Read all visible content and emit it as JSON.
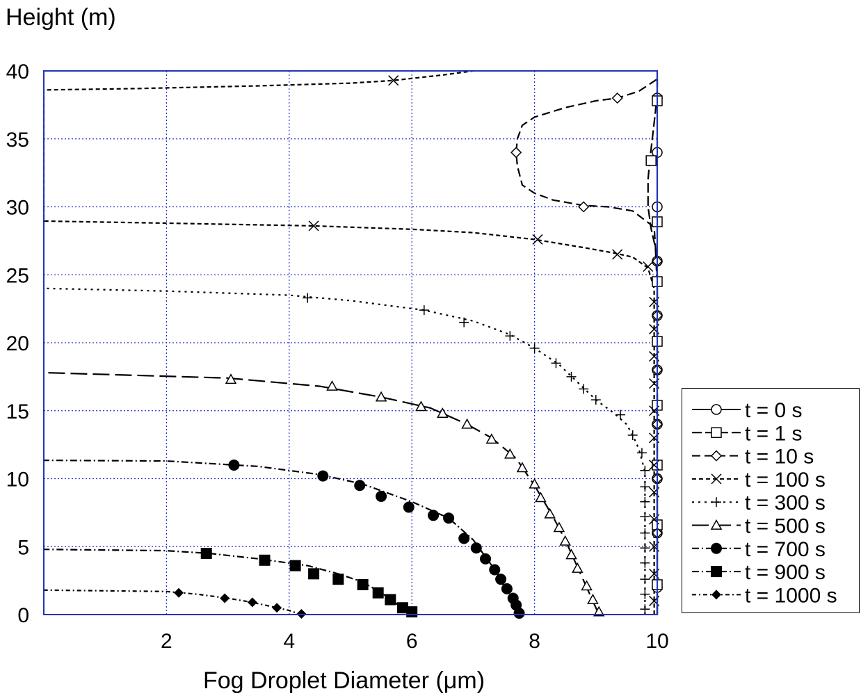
{
  "chart_data": {
    "type": "line",
    "title": "",
    "xlabel": "Fog Droplet Diameter (μm)",
    "ylabel": "Height (m)",
    "xlim": [
      0,
      10
    ],
    "ylim": [
      0,
      40
    ],
    "xticks": [
      "2",
      "4",
      "6",
      "8",
      "10"
    ],
    "yticks": [
      "0",
      "5",
      "10",
      "15",
      "20",
      "25",
      "30",
      "35",
      "40"
    ],
    "grid": true,
    "legend_position": "right",
    "series": [
      {
        "name": "t = 0 s",
        "marker": "circle",
        "dash": "8 0",
        "points": [
          [
            10,
            0
          ],
          [
            10,
            2
          ],
          [
            10,
            4
          ],
          [
            10,
            6
          ],
          [
            10,
            8
          ],
          [
            10,
            10
          ],
          [
            10,
            12
          ],
          [
            10,
            14
          ],
          [
            10,
            16
          ],
          [
            10,
            18
          ],
          [
            10,
            20
          ],
          [
            10,
            22
          ],
          [
            10,
            24
          ],
          [
            10,
            26
          ],
          [
            10,
            28
          ],
          [
            10,
            30
          ],
          [
            10,
            32
          ],
          [
            10,
            34
          ],
          [
            10,
            36
          ],
          [
            10,
            38
          ],
          [
            10,
            40
          ]
        ],
        "marked": [
          [
            10,
            2
          ],
          [
            10,
            6
          ],
          [
            10,
            10
          ],
          [
            10,
            14
          ],
          [
            10,
            18
          ],
          [
            10,
            22
          ],
          [
            10,
            26
          ],
          [
            10,
            30
          ],
          [
            10,
            34
          ],
          [
            10,
            38
          ]
        ]
      },
      {
        "name": "t = 1 s",
        "marker": "square",
        "dash": "14 5",
        "points": [
          [
            10,
            0
          ],
          [
            10,
            2.2
          ],
          [
            10,
            6.6
          ],
          [
            10,
            11
          ],
          [
            10,
            15.4
          ],
          [
            10,
            19.8
          ],
          [
            10,
            24.2
          ],
          [
            9.97,
            27
          ],
          [
            9.9,
            28.4
          ],
          [
            9.85,
            30
          ],
          [
            9.85,
            32
          ],
          [
            9.88,
            33.5
          ],
          [
            9.92,
            35
          ],
          [
            9.97,
            37
          ],
          [
            10,
            38.5
          ],
          [
            10,
            39.5
          ]
        ],
        "marked": [
          [
            10,
            2.2
          ],
          [
            10,
            6.6
          ],
          [
            10,
            11
          ],
          [
            10,
            15.4
          ],
          [
            10,
            20.1
          ],
          [
            10,
            24.5
          ],
          [
            10,
            28.9
          ],
          [
            9.9,
            33.4
          ],
          [
            10,
            37.8
          ]
        ]
      },
      {
        "name": "t = 10 s",
        "marker": "diamond",
        "dash": "12 6",
        "points": [
          [
            10,
            0
          ],
          [
            10,
            10
          ],
          [
            10,
            20
          ],
          [
            10,
            25
          ],
          [
            9.95,
            28.5
          ],
          [
            9.6,
            29.7
          ],
          [
            9.2,
            30
          ],
          [
            8.8,
            30.1
          ],
          [
            8.3,
            30.5
          ],
          [
            8.0,
            31
          ],
          [
            7.8,
            31.6
          ],
          [
            7.72,
            33
          ],
          [
            7.7,
            34
          ],
          [
            7.72,
            35
          ],
          [
            7.8,
            36
          ],
          [
            8.0,
            36.6
          ],
          [
            8.5,
            37.3
          ],
          [
            9.0,
            37.8
          ],
          [
            9.35,
            38
          ],
          [
            9.7,
            38.5
          ],
          [
            9.9,
            39.1
          ],
          [
            10,
            39.4
          ]
        ],
        "marked": [
          [
            10,
            6
          ],
          [
            10,
            10
          ],
          [
            10,
            14
          ],
          [
            10,
            18
          ],
          [
            10,
            22
          ],
          [
            10,
            26
          ],
          [
            8.8,
            30
          ],
          [
            7.7,
            34
          ],
          [
            9.35,
            38
          ]
        ]
      },
      {
        "name": "t = 100 s",
        "marker": "x",
        "dash": "6 4",
        "points": [
          [
            9.95,
            0
          ],
          [
            9.95,
            8
          ],
          [
            9.95,
            16
          ],
          [
            9.95,
            24
          ],
          [
            9.85,
            25.5
          ],
          [
            9.6,
            26.3
          ],
          [
            9.3,
            26.6
          ],
          [
            8.8,
            27
          ],
          [
            8.0,
            27.6
          ],
          [
            7.0,
            28.1
          ],
          [
            6.0,
            28.35
          ],
          [
            4.4,
            28.6
          ],
          [
            2.0,
            28.8
          ],
          [
            0,
            28.95
          ],
          [
            0,
            38.6
          ],
          [
            1.5,
            38.7
          ],
          [
            3.5,
            38.9
          ],
          [
            5.0,
            39.1
          ],
          [
            5.7,
            39.3
          ],
          [
            6.5,
            39.7
          ],
          [
            7.0,
            40
          ]
        ],
        "marked": [
          [
            9.95,
            1
          ],
          [
            9.95,
            3
          ],
          [
            9.95,
            5
          ],
          [
            9.95,
            7
          ],
          [
            9.95,
            9
          ],
          [
            9.95,
            11
          ],
          [
            9.95,
            13
          ],
          [
            9.95,
            15
          ],
          [
            9.95,
            17
          ],
          [
            9.95,
            19
          ],
          [
            9.95,
            21
          ],
          [
            9.95,
            23
          ],
          [
            9.85,
            25.6
          ],
          [
            9.35,
            26.5
          ],
          [
            8.05,
            27.6
          ],
          [
            4.4,
            28.6
          ],
          [
            5.7,
            39.3
          ]
        ]
      },
      {
        "name": "t = 300 s",
        "marker": "plus",
        "dash": "3 6",
        "points": [
          [
            9.8,
            0
          ],
          [
            9.8,
            10.5
          ],
          [
            9.7,
            12.2
          ],
          [
            9.6,
            13.2
          ],
          [
            9.5,
            14
          ],
          [
            9.3,
            14.8
          ],
          [
            9.0,
            15.8
          ],
          [
            8.7,
            17.1
          ],
          [
            8.4,
            18.4
          ],
          [
            8.0,
            19.6
          ],
          [
            7.6,
            20.6
          ],
          [
            7.0,
            21.6
          ],
          [
            6.2,
            22.4
          ],
          [
            5.0,
            23.1
          ],
          [
            4.0,
            23.5
          ],
          [
            2.0,
            23.8
          ],
          [
            0,
            24
          ]
        ],
        "marked": [
          [
            9.8,
            0.4
          ],
          [
            9.8,
            1.5
          ],
          [
            9.8,
            2.6
          ],
          [
            9.8,
            3.8
          ],
          [
            9.8,
            4.9
          ],
          [
            9.8,
            6
          ],
          [
            9.8,
            7.2
          ],
          [
            9.8,
            8.3
          ],
          [
            9.8,
            9.4
          ],
          [
            9.8,
            10.6
          ],
          [
            9.75,
            11.9
          ],
          [
            9.6,
            13.2
          ],
          [
            9.4,
            14.7
          ],
          [
            9.0,
            15.8
          ],
          [
            8.8,
            16.6
          ],
          [
            8.6,
            17.5
          ],
          [
            8.35,
            18.5
          ],
          [
            8.0,
            19.6
          ],
          [
            7.6,
            20.5
          ],
          [
            6.85,
            21.5
          ],
          [
            6.2,
            22.4
          ],
          [
            4.3,
            23.3
          ]
        ]
      },
      {
        "name": "t = 500 s",
        "marker": "triangle",
        "dash": "24 8",
        "points": [
          [
            9.05,
            0
          ],
          [
            8.9,
            1.5
          ],
          [
            8.7,
            3.5
          ],
          [
            8.5,
            5.5
          ],
          [
            8.3,
            7.2
          ],
          [
            8.0,
            9.5
          ],
          [
            7.7,
            11.5
          ],
          [
            7.3,
            13
          ],
          [
            6.9,
            14
          ],
          [
            6.3,
            15.2
          ],
          [
            5.5,
            16
          ],
          [
            4.5,
            16.8
          ],
          [
            3.0,
            17.4
          ],
          [
            1.5,
            17.6
          ],
          [
            0,
            17.8
          ]
        ],
        "marked": [
          [
            9.05,
            0.2
          ],
          [
            8.95,
            1.1
          ],
          [
            8.85,
            2.1
          ],
          [
            8.7,
            3.4
          ],
          [
            8.6,
            4.4
          ],
          [
            8.5,
            5.4
          ],
          [
            8.4,
            6.4
          ],
          [
            8.25,
            7.4
          ],
          [
            8.1,
            8.6
          ],
          [
            8.0,
            9.6
          ],
          [
            7.8,
            10.8
          ],
          [
            7.6,
            11.8
          ],
          [
            7.3,
            12.9
          ],
          [
            6.9,
            14
          ],
          [
            6.5,
            14.8
          ],
          [
            6.15,
            15.3
          ],
          [
            5.5,
            16
          ],
          [
            4.7,
            16.8
          ],
          [
            3.05,
            17.3
          ]
        ]
      },
      {
        "name": "t = 700 s",
        "marker": "filled-circle",
        "dash": "10 4 2 4",
        "points": [
          [
            7.75,
            0
          ],
          [
            7.6,
            1.2
          ],
          [
            7.4,
            3
          ],
          [
            7.0,
            5.5
          ],
          [
            6.6,
            7.1
          ],
          [
            6.0,
            8.3
          ],
          [
            5.2,
            9.6
          ],
          [
            4.5,
            10.3
          ],
          [
            3.5,
            10.9
          ],
          [
            2.0,
            11.3
          ],
          [
            0,
            11.35
          ]
        ],
        "marked": [
          [
            7.75,
            0.1
          ],
          [
            7.7,
            0.7
          ],
          [
            7.65,
            1.2
          ],
          [
            7.55,
            1.9
          ],
          [
            7.45,
            2.6
          ],
          [
            7.35,
            3.3
          ],
          [
            7.2,
            4.1
          ],
          [
            7.05,
            4.9
          ],
          [
            6.85,
            5.6
          ],
          [
            6.6,
            7.1
          ],
          [
            6.35,
            7.3
          ],
          [
            5.95,
            7.9
          ],
          [
            5.5,
            8.7
          ],
          [
            5.15,
            9.5
          ],
          [
            4.55,
            10.2
          ],
          [
            3.1,
            11
          ]
        ]
      },
      {
        "name": "t = 900 s",
        "marker": "filled-square",
        "dash": "10 4 2 4",
        "points": [
          [
            6.0,
            0
          ],
          [
            5.85,
            0.4
          ],
          [
            5.7,
            1
          ],
          [
            5.5,
            1.6
          ],
          [
            5.2,
            2.4
          ],
          [
            4.8,
            3
          ],
          [
            4.3,
            3.6
          ],
          [
            3.5,
            4.1
          ],
          [
            2.7,
            4.5
          ],
          [
            2.0,
            4.7
          ],
          [
            0,
            4.8
          ]
        ],
        "marked": [
          [
            6.0,
            0.2
          ],
          [
            5.85,
            0.5
          ],
          [
            5.65,
            1.1
          ],
          [
            5.45,
            1.6
          ],
          [
            5.2,
            2.2
          ],
          [
            4.8,
            2.6
          ],
          [
            4.4,
            3.0
          ],
          [
            4.1,
            3.6
          ],
          [
            3.6,
            4.0
          ],
          [
            2.65,
            4.5
          ]
        ]
      },
      {
        "name": "t = 1000 s",
        "marker": "filled-diamond",
        "dash": "6 4 2 4",
        "points": [
          [
            4.2,
            0
          ],
          [
            4.0,
            0.3
          ],
          [
            3.8,
            0.5
          ],
          [
            3.4,
            0.9
          ],
          [
            3.0,
            1.2
          ],
          [
            2.5,
            1.5
          ],
          [
            2.0,
            1.7
          ],
          [
            1.0,
            1.75
          ],
          [
            0,
            1.8
          ]
        ],
        "marked": [
          [
            4.2,
            0.05
          ],
          [
            3.8,
            0.5
          ],
          [
            3.4,
            0.9
          ],
          [
            2.95,
            1.2
          ],
          [
            2.2,
            1.6
          ]
        ]
      }
    ]
  }
}
